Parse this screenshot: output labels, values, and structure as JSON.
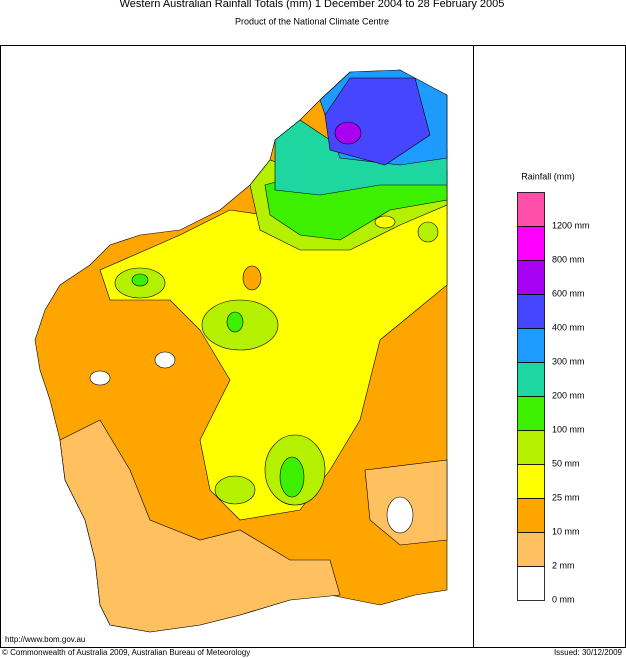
{
  "title": "Western Australian Rainfall Totals (mm) 1 December 2004 to 28 February 2005",
  "subtitle": "Product of the National Climate Centre",
  "legend": {
    "title": "Rainfall (mm)",
    "items": [
      {
        "label": "1200 mm",
        "color": "#ff4fa8"
      },
      {
        "label": "800 mm",
        "color": "#ff00ff"
      },
      {
        "label": "600 mm",
        "color": "#a800f0"
      },
      {
        "label": "400 mm",
        "color": "#4646ff"
      },
      {
        "label": "300 mm",
        "color": "#1e9bff"
      },
      {
        "label": "200 mm",
        "color": "#1ed7a0"
      },
      {
        "label": "100 mm",
        "color": "#3cf000"
      },
      {
        "label": "50 mm",
        "color": "#b4f000"
      },
      {
        "label": "25 mm",
        "color": "#ffff00"
      },
      {
        "label": "10 mm",
        "color": "#ffa500"
      },
      {
        "label": "2 mm",
        "color": "#ffc060"
      },
      {
        "label": "0 mm",
        "color": "#ffffff"
      }
    ]
  },
  "footer": {
    "url": "http://www.bom.gov.au",
    "copyright": "© Commonwealth of Australia 2009, Australian Bureau of Meteorology",
    "issued": "Issued: 30/12/2009"
  }
}
